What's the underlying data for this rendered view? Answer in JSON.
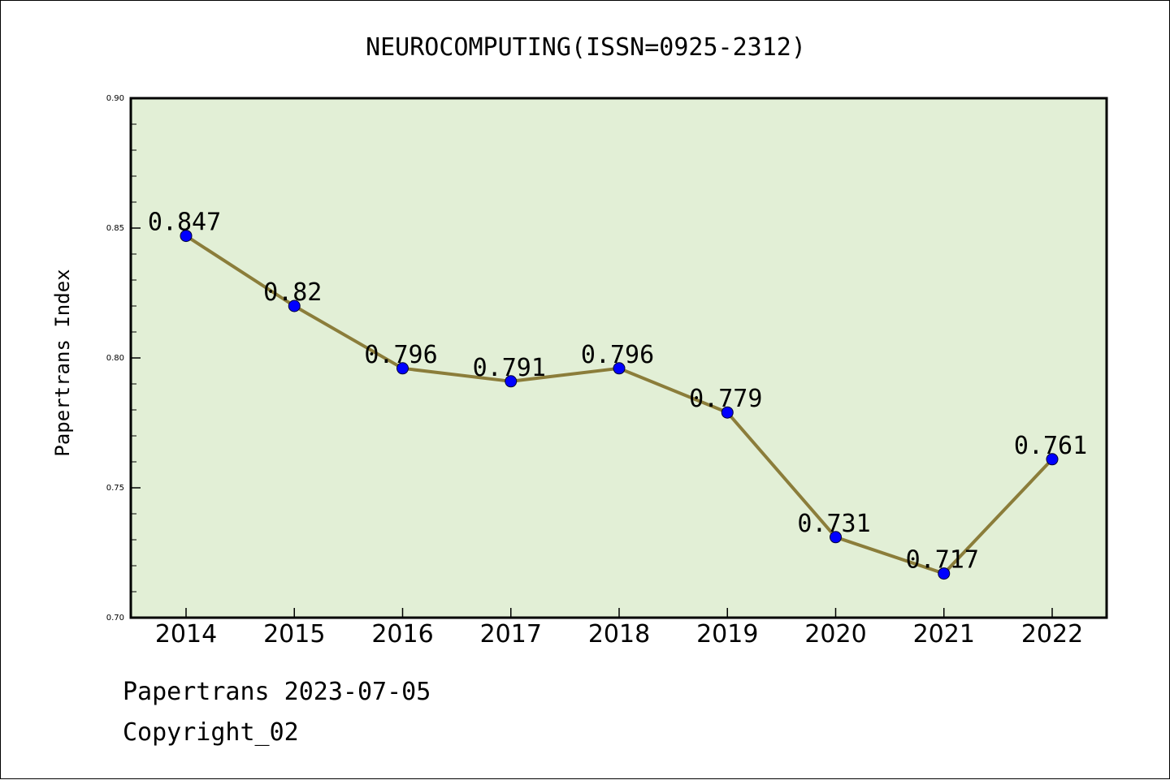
{
  "chart_data": {
    "type": "line",
    "title": "NEUROCOMPUTING(ISSN=0925-2312)",
    "ylabel": "Papertrans Index",
    "xlabel": "",
    "categories": [
      "2014",
      "2015",
      "2016",
      "2017",
      "2018",
      "2019",
      "2020",
      "2021",
      "2022"
    ],
    "values": [
      0.847,
      0.82,
      0.796,
      0.791,
      0.796,
      0.779,
      0.731,
      0.717,
      0.761
    ],
    "data_labels": [
      "0.847",
      "0.82",
      "0.796",
      "0.791",
      "0.796",
      "0.779",
      "0.731",
      "0.717",
      "0.761"
    ],
    "ylim": [
      0.7,
      0.9
    ],
    "yticks": [
      "0.70",
      "0.75",
      "0.80",
      "0.85",
      "0.90"
    ],
    "ytick_values": [
      0.7,
      0.75,
      0.8,
      0.85,
      0.9
    ],
    "grid": false,
    "colors": {
      "plot_background": "#e2efd6",
      "line": "#8b7d3a",
      "marker": "#0000ff"
    }
  },
  "footer": {
    "date_line": "Papertrans 2023-07-05",
    "copyright": "Copyright_02"
  }
}
